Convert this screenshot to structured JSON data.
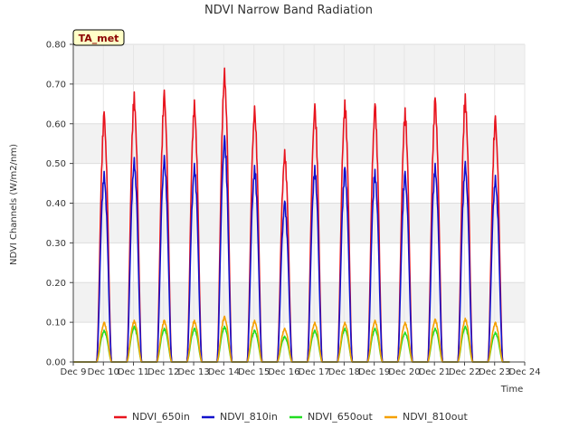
{
  "chart_data": {
    "type": "line",
    "title": "NDVI Narrow Band Radiation",
    "xlabel": "Time",
    "ylabel": "NDVI Channels (W/m2/nm)",
    "badge": "TA_met",
    "ylim": [
      0.0,
      0.8
    ],
    "yticks": [
      "0.00",
      "0.10",
      "0.20",
      "0.30",
      "0.40",
      "0.50",
      "0.60",
      "0.70",
      "0.80"
    ],
    "xlim": [
      "Dec 9",
      "Dec 24"
    ],
    "xticks": [
      "Dec 9",
      "Dec 10",
      "Dec 11",
      "Dec 12",
      "Dec 13",
      "Dec 14",
      "Dec 15",
      "Dec 16",
      "Dec 17",
      "Dec 18",
      "Dec 19",
      "Dec 20",
      "Dec 21",
      "Dec 22",
      "Dec 23",
      "Dec 24"
    ],
    "grid": true,
    "legend_position": "bottom",
    "note": "Each series is a diurnal cycle: zero at night, one daily peak near midday. Values below are the daily peak (in W/m2/nm) for each day Dec 10 - Dec 23.",
    "day_labels": [
      "Dec 10",
      "Dec 11",
      "Dec 12",
      "Dec 13",
      "Dec 14",
      "Dec 15",
      "Dec 16",
      "Dec 17",
      "Dec 18",
      "Dec 19",
      "Dec 20",
      "Dec 21",
      "Dec 22",
      "Dec 23"
    ],
    "series": [
      {
        "name": "NDVI_650in",
        "color": "#e8141e",
        "daily_peak": [
          0.63,
          0.68,
          0.685,
          0.66,
          0.74,
          0.645,
          0.535,
          0.65,
          0.66,
          0.65,
          0.64,
          0.665,
          0.675,
          0.62
        ]
      },
      {
        "name": "NDVI_810in",
        "color": "#1111cc",
        "daily_peak": [
          0.48,
          0.515,
          0.52,
          0.5,
          0.57,
          0.495,
          0.405,
          0.495,
          0.49,
          0.485,
          0.48,
          0.5,
          0.505,
          0.47
        ]
      },
      {
        "name": "NDVI_650out",
        "color": "#22dd22",
        "daily_peak": [
          0.08,
          0.09,
          0.085,
          0.085,
          0.09,
          0.08,
          0.065,
          0.08,
          0.085,
          0.085,
          0.075,
          0.085,
          0.09,
          0.075
        ]
      },
      {
        "name": "NDVI_810out",
        "color": "#f5a000",
        "daily_peak": [
          0.1,
          0.105,
          0.105,
          0.105,
          0.115,
          0.105,
          0.085,
          0.1,
          0.1,
          0.105,
          0.1,
          0.108,
          0.11,
          0.1
        ]
      }
    ]
  }
}
